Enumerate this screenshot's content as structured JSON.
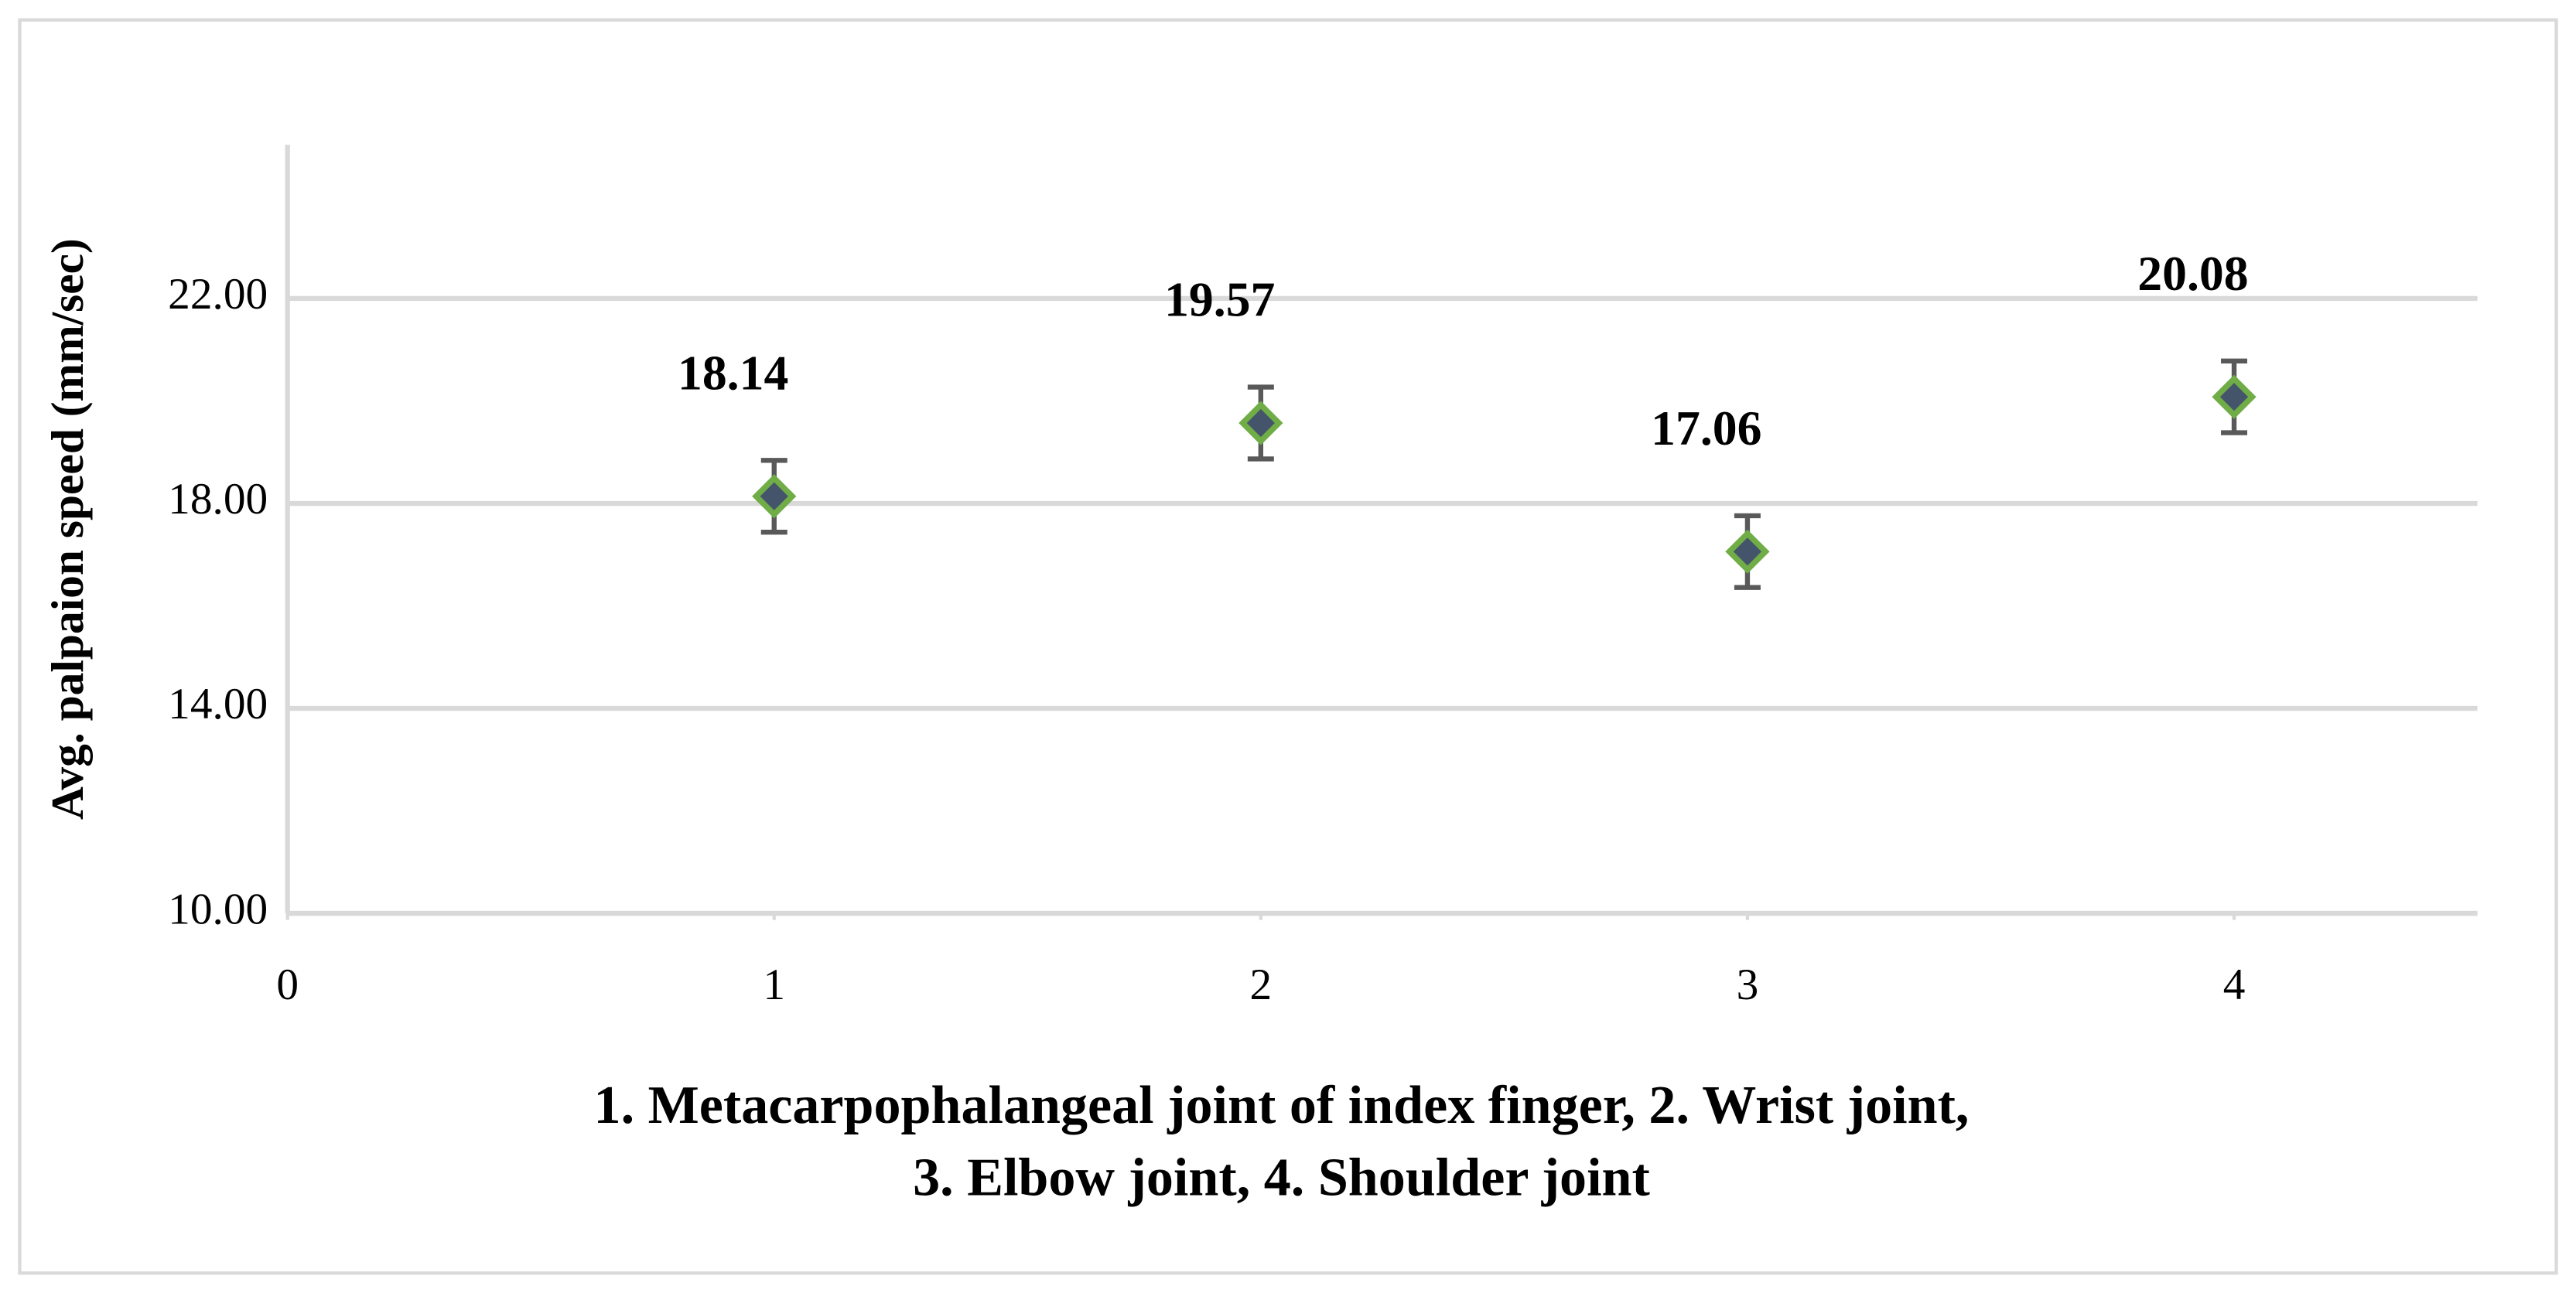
{
  "chart_data": {
    "type": "scatter",
    "y_label": "Avg. palpaion speed (mm/sec)",
    "x_label": [
      "1. Metacarpophalangeal joint of index finger, 2. Wrist joint,",
      "3. Elbow joint, 4. Shoulder joint"
    ],
    "x": [
      1,
      2,
      3,
      4
    ],
    "series": [
      {
        "color": "#44546a",
        "edge_color": "#70ad47",
        "error_color": "#595959",
        "values": [
          18.14,
          19.57,
          17.06,
          20.08
        ],
        "errors": [
          0.7,
          0.7,
          0.7,
          0.7
        ]
      }
    ],
    "xlim": [
      0,
      4.5
    ],
    "xticks": [
      0,
      1,
      2,
      3,
      4
    ],
    "ylim": [
      10,
      25
    ],
    "yticks": [
      {
        "value": 10,
        "label": "10.00"
      },
      {
        "value": 14,
        "label": "14.00"
      },
      {
        "value": 18,
        "label": "18.00"
      },
      {
        "value": 22,
        "label": "22.00"
      }
    ],
    "grid": true
  }
}
